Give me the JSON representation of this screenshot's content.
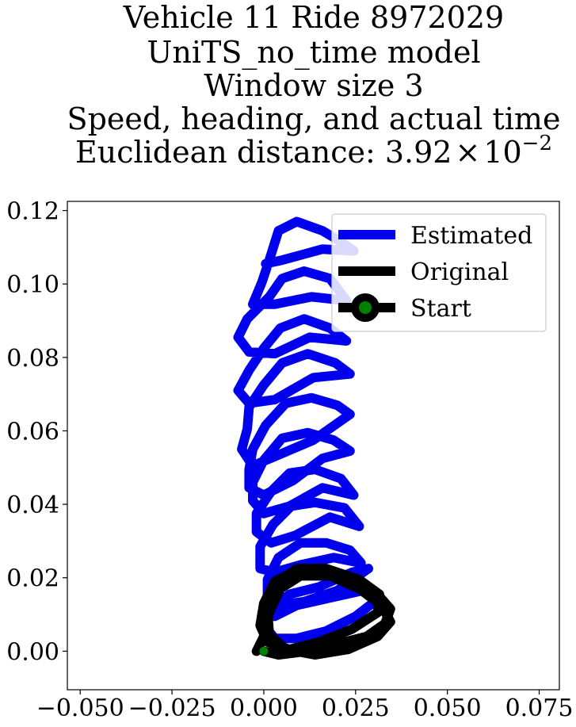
{
  "chart_data": {
    "type": "line",
    "title_lines": [
      "Vehicle 11 Ride 8972029",
      "UniTS_no_time model",
      "Window size 3",
      "Speed, heading, and actual time"
    ],
    "title_distance_prefix": "Euclidean distance: ",
    "title_distance_mantissa": "3.92",
    "title_distance_times": "×",
    "title_distance_base": "10",
    "title_distance_exponent": "−2",
    "xlim": [
      -0.0535,
      0.0805
    ],
    "ylim": [
      -0.0105,
      0.1225
    ],
    "xticks": [
      -0.05,
      -0.025,
      0.0,
      0.025,
      0.05,
      0.075
    ],
    "xtick_labels": [
      "−0.050",
      "−0.025",
      "0.000",
      "0.025",
      "0.050",
      "0.075"
    ],
    "yticks": [
      0.0,
      0.02,
      0.04,
      0.06,
      0.08,
      0.1,
      0.12
    ],
    "ytick_labels": [
      "0.00",
      "0.02",
      "0.04",
      "0.06",
      "0.08",
      "0.10",
      "0.12"
    ],
    "grid": false,
    "legend_position": "top-right",
    "legend": [
      {
        "label": "Estimated",
        "color": "#0000ee",
        "marker": false
      },
      {
        "label": "Original",
        "color": "#000000",
        "marker": false
      },
      {
        "label": "Start",
        "color": "#000000",
        "marker": true,
        "marker_color": "#008000"
      }
    ],
    "series": [
      {
        "name": "Estimated",
        "color": "#0000ee",
        "points": [
          [
            0.0005,
            0.1055
          ],
          [
            0.005,
            0.1065
          ],
          [
            0.016,
            0.1095
          ],
          [
            0.0245,
            0.109
          ],
          [
            0.021,
            0.1115
          ],
          [
            0.016,
            0.1145
          ],
          [
            0.009,
            0.117
          ],
          [
            0.004,
            0.1145
          ],
          [
            0.0015,
            0.1065
          ],
          [
            -0.0005,
            0.1005
          ],
          [
            -0.003,
            0.0945
          ],
          [
            0.003,
            0.0945
          ],
          [
            0.013,
            0.0965
          ],
          [
            0.0225,
            0.0955
          ],
          [
            0.018,
            0.1015
          ],
          [
            0.011,
            0.1035
          ],
          [
            0.005,
            0.1015
          ],
          [
            0.0015,
            0.0965
          ],
          [
            -0.0045,
            0.0905
          ],
          [
            -0.007,
            0.0855
          ],
          [
            -0.004,
            0.0815
          ],
          [
            0.003,
            0.081
          ],
          [
            0.0125,
            0.0855
          ],
          [
            0.0225,
            0.0845
          ],
          [
            0.018,
            0.088
          ],
          [
            0.011,
            0.0905
          ],
          [
            0.0045,
            0.088
          ],
          [
            0.0,
            0.0825
          ],
          [
            -0.004,
            0.0765
          ],
          [
            -0.007,
            0.071
          ],
          [
            -0.004,
            0.0675
          ],
          [
            0.003,
            0.0685
          ],
          [
            0.0135,
            0.0745
          ],
          [
            0.0235,
            0.0755
          ],
          [
            0.0195,
            0.0785
          ],
          [
            0.012,
            0.081
          ],
          [
            0.005,
            0.0785
          ],
          [
            0.0,
            0.0725
          ],
          [
            -0.004,
            0.0665
          ],
          [
            -0.0045,
            0.0605
          ],
          [
            -0.006,
            0.055
          ],
          [
            -0.003,
            0.0505
          ],
          [
            0.003,
            0.053
          ],
          [
            0.0135,
            0.0575
          ],
          [
            0.0235,
            0.0645
          ],
          [
            0.02,
            0.067
          ],
          [
            0.013,
            0.069
          ],
          [
            0.006,
            0.0675
          ],
          [
            0.0005,
            0.0615
          ],
          [
            -0.003,
            0.055
          ],
          [
            -0.004,
            0.0495
          ],
          [
            -0.004,
            0.0445
          ],
          [
            0.0,
            0.0425
          ],
          [
            0.008,
            0.0465
          ],
          [
            0.016,
            0.0525
          ],
          [
            0.0235,
            0.0545
          ],
          [
            0.019,
            0.0575
          ],
          [
            0.012,
            0.0595
          ],
          [
            0.005,
            0.058
          ],
          [
            0.0,
            0.052
          ],
          [
            -0.003,
            0.046
          ],
          [
            -0.003,
            0.041
          ],
          [
            0.0,
            0.0375
          ],
          [
            0.007,
            0.0395
          ],
          [
            0.016,
            0.0445
          ],
          [
            0.0245,
            0.0425
          ],
          [
            0.021,
            0.047
          ],
          [
            0.014,
            0.0495
          ],
          [
            0.007,
            0.0485
          ],
          [
            0.002,
            0.0435
          ],
          [
            -0.002,
            0.0375
          ],
          [
            -0.002,
            0.0325
          ],
          [
            0.002,
            0.0295
          ],
          [
            0.0085,
            0.0315
          ],
          [
            0.018,
            0.0365
          ],
          [
            0.026,
            0.034
          ],
          [
            0.022,
            0.039
          ],
          [
            0.014,
            0.0405
          ],
          [
            0.0075,
            0.0395
          ],
          [
            0.0025,
            0.0345
          ],
          [
            -0.001,
            0.0285
          ],
          [
            -0.001,
            0.0225
          ],
          [
            0.003,
            0.0215
          ],
          [
            0.01,
            0.0235
          ],
          [
            0.019,
            0.0255
          ],
          [
            0.0265,
            0.024
          ],
          [
            0.0235,
            0.0275
          ],
          [
            0.017,
            0.0295
          ],
          [
            0.01,
            0.0295
          ],
          [
            0.004,
            0.0255
          ],
          [
            0.001,
            0.0195
          ],
          [
            0.001,
            0.0145
          ],
          [
            0.004,
            0.0125
          ],
          [
            0.011,
            0.0135
          ],
          [
            0.02,
            0.0165
          ],
          [
            0.0285,
            0.0225
          ],
          [
            0.024,
            0.0215
          ],
          [
            0.015,
            0.0175
          ],
          [
            0.007,
            0.0155
          ],
          [
            0.002,
            0.0115
          ],
          [
            0.0005,
            0.0065
          ],
          [
            0.003,
            0.0035
          ],
          [
            0.009,
            0.0035
          ],
          [
            0.017,
            0.0055
          ],
          [
            0.025,
            0.0095
          ],
          [
            0.0315,
            0.0145
          ],
          [
            0.027,
            0.0165
          ],
          [
            0.018,
            0.0145
          ],
          [
            0.009,
            0.0125
          ],
          [
            0.003,
            0.0095
          ]
        ]
      },
      {
        "name": "Original",
        "color": "#000000",
        "points": [
          [
            0.0,
            0.0
          ],
          [
            0.004,
            -0.001
          ],
          [
            0.012,
            0.0
          ],
          [
            0.02,
            0.002
          ],
          [
            0.028,
            0.004
          ],
          [
            0.033,
            0.0075
          ],
          [
            0.0345,
            0.0115
          ],
          [
            0.031,
            0.0155
          ],
          [
            0.024,
            0.019
          ],
          [
            0.016,
            0.021
          ],
          [
            0.008,
            0.0215
          ],
          [
            0.003,
            0.019
          ],
          [
            0.0,
            0.013
          ],
          [
            -0.001,
            0.007
          ],
          [
            0.001,
            0.0025
          ],
          [
            0.007,
            0.0005
          ],
          [
            0.015,
            0.0025
          ],
          [
            0.024,
            0.006
          ],
          [
            0.031,
            0.0105
          ],
          [
            0.0315,
            0.0155
          ],
          [
            0.026,
            0.0195
          ],
          [
            0.017,
            0.0225
          ],
          [
            0.009,
            0.0225
          ],
          [
            0.0035,
            0.0185
          ],
          [
            0.001,
            0.0115
          ],
          [
            0.0015,
            0.0045
          ],
          [
            0.006,
            0.0005
          ],
          [
            0.014,
            -0.001
          ],
          [
            0.023,
            0.0005
          ],
          [
            0.031,
            0.004
          ],
          [
            0.0345,
            0.008
          ],
          [
            0.032,
            0.0125
          ],
          [
            0.026,
            0.017
          ],
          [
            0.018,
            0.0205
          ],
          [
            0.01,
            0.0205
          ],
          [
            0.0045,
            0.017
          ],
          [
            0.0015,
            0.0105
          ],
          [
            0.0,
            0.004
          ],
          [
            -0.002,
            0.0
          ]
        ]
      }
    ],
    "start_point": [
      0.0,
      0.0
    ]
  }
}
